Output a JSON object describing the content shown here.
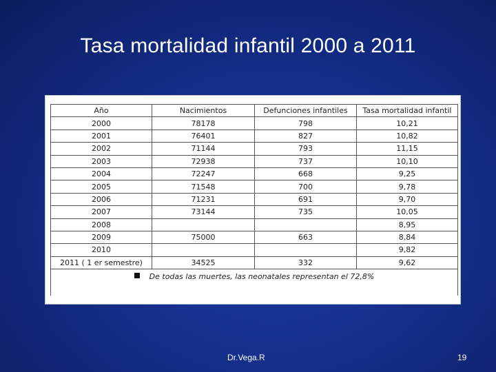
{
  "title": "Tasa mortalidad infantil 2000 a 2011",
  "table": {
    "headers": [
      "Año",
      "Nacimientos",
      "Defunciones infantiles",
      "Tasa mortalidad infantil"
    ],
    "rows": [
      [
        "2000",
        "78178",
        "798",
        "10,21"
      ],
      [
        "2001",
        "76401",
        "827",
        "10,82"
      ],
      [
        "2002",
        "71144",
        "793",
        "11,15"
      ],
      [
        "2003",
        "72938",
        "737",
        "10,10"
      ],
      [
        "2004",
        "72247",
        "668",
        "9,25"
      ],
      [
        "2005",
        "71548",
        "700",
        "9,78"
      ],
      [
        "2006",
        "71231",
        "691",
        "9,70"
      ],
      [
        "2007",
        "73144",
        "735",
        "10,05"
      ],
      [
        "2008",
        "",
        "",
        "8,95"
      ],
      [
        "2009",
        "75000",
        "663",
        "8,84"
      ],
      [
        "2010",
        "",
        "",
        "9,82"
      ],
      [
        "2011 ( 1 er semestre)",
        "34525",
        "332",
        "9,62"
      ]
    ],
    "note": "De todas las muertes, las neonatales representan el 72,8%"
  },
  "footer": {
    "author": "Dr.Vega.R",
    "page": "19"
  }
}
